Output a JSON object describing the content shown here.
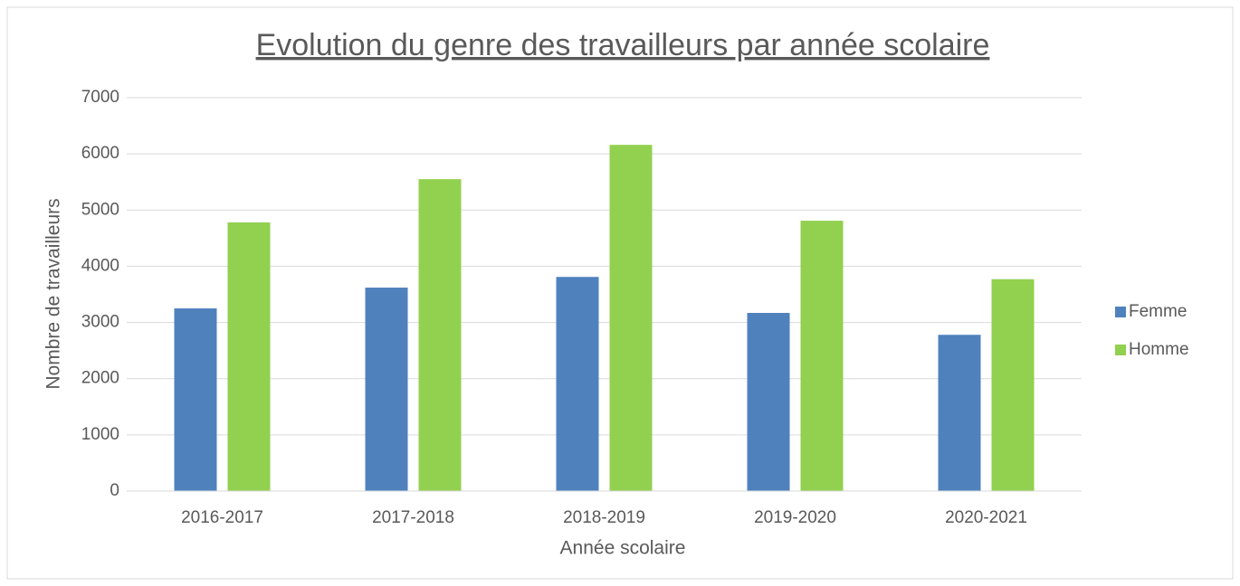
{
  "chart_data": {
    "type": "bar",
    "title": "Evolution du genre des travailleurs par année scolaire",
    "x_label": "Année scolaire",
    "y_label": "Nombre de travailleurs",
    "categories": [
      "2016-2017",
      "2017-2018",
      "2018-2019",
      "2019-2020",
      "2020-2021"
    ],
    "series": [
      {
        "name": "Femme",
        "color": "#4f81bd",
        "values": [
          3250,
          3620,
          3810,
          3170,
          2780
        ]
      },
      {
        "name": "Homme",
        "color": "#92d050",
        "values": [
          4780,
          5550,
          6160,
          4810,
          3770
        ]
      }
    ],
    "ylim": [
      0,
      7000
    ],
    "yticks": [
      0,
      1000,
      2000,
      3000,
      4000,
      5000,
      6000,
      7000
    ],
    "grid": true,
    "legend": "right"
  }
}
